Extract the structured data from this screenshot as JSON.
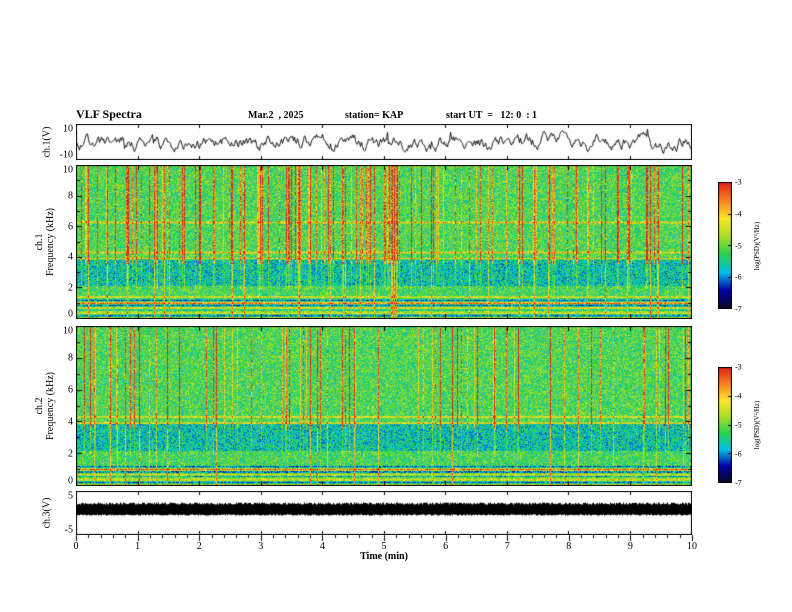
{
  "header": {
    "title": "VLF Spectra",
    "date": "Mar.2  , 2025",
    "station": "station= KAP",
    "start_ut": "start UT  =   12: 0  : 1"
  },
  "xaxis": {
    "label": "Time (min)",
    "range": [
      0,
      10
    ],
    "ticks": [
      0,
      1,
      2,
      3,
      4,
      5,
      6,
      7,
      8,
      9,
      10
    ]
  },
  "colorbar": {
    "label": "log(PSD)(V²/Hz)",
    "range": [
      -7,
      -3
    ],
    "ticks": [
      -3,
      -4,
      -5,
      -6,
      -7
    ],
    "gradient": [
      "#0a0a20",
      "#0000a8",
      "#00c0e8",
      "#28d250",
      "#aadc28",
      "#fae628",
      "#fa821e",
      "#e61e1e"
    ]
  },
  "chart_data": [
    {
      "type": "line",
      "panel": "ch1-amplitude",
      "ylabel": "ch.1(V)",
      "ylim": [
        -10,
        10
      ],
      "yticks": [
        10,
        -10
      ],
      "x_range_min": [
        0,
        10
      ],
      "description": "Broadband VLF amplitude trace fluctuating about 0 V with roughly ±5 V noise and impulsive spikes"
    },
    {
      "type": "heatmap",
      "panel": "ch1-spectrogram",
      "ylabel_lines": [
        "ch.1",
        "Frequency (kHz)"
      ],
      "ylim": [
        0,
        10
      ],
      "yticks": [
        0,
        2,
        4,
        6,
        8,
        10
      ],
      "x_range_min": [
        0,
        10
      ],
      "sferic_streak_density": "high",
      "horizontal_lines_khz": [
        0.55,
        1.05,
        1.45,
        3.95,
        4.35,
        6.3
      ],
      "description": "Dense red vertical sferic streaks 4–10 kHz over green-yellow noise, quieter cyan-blue band 2.2–3.9 kHz, striped bands below 1.3 kHz, persistent horizontal spectral lines"
    },
    {
      "type": "heatmap",
      "panel": "ch2-spectrogram",
      "ylabel_lines": [
        "ch.2",
        "Frequency (kHz)"
      ],
      "ylim": [
        0,
        10
      ],
      "yticks": [
        0,
        2,
        4,
        6,
        8,
        10
      ],
      "x_range_min": [
        0,
        10
      ],
      "sferic_streak_density": "moderate",
      "horizontal_lines_khz": [
        0.55,
        1.05,
        3.95,
        4.35
      ],
      "description": "Similar to ch.1 with fewer vertical sferic streaks and more uniform green-cyan background"
    },
    {
      "type": "line",
      "panel": "ch3-amplitude",
      "ylabel": "ch.3(V)",
      "ylim": [
        -5,
        5
      ],
      "yticks": [
        5,
        -5
      ],
      "x_range_min": [
        0,
        10
      ],
      "description": "Saturated dense trace forming a solid black band between about -0.5 V and 2.2 V for the whole record"
    }
  ]
}
